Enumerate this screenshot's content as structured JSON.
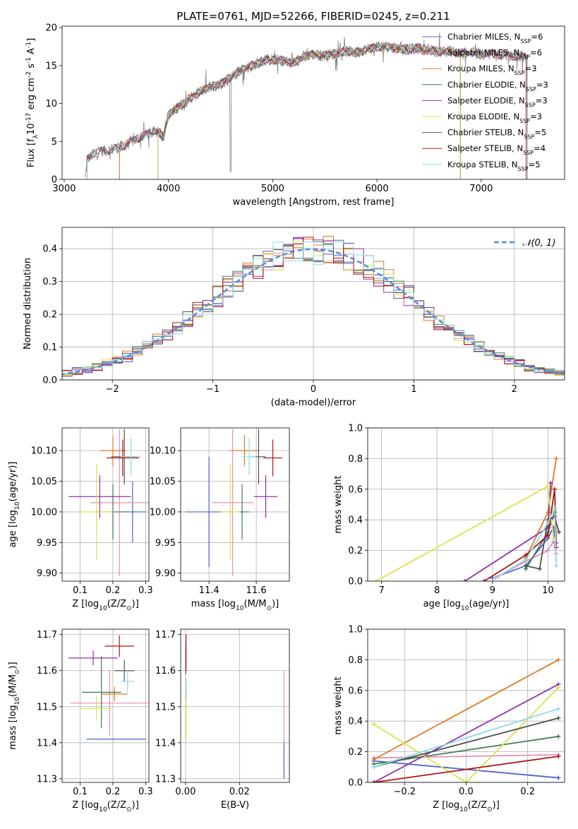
{
  "colors": {
    "Chabrier MILES": "#4f62d0",
    "Salpeter MILES": "#e58fb8",
    "Kroupa MILES": "#dd7a22",
    "Chabrier ELODIE": "#3f7a55",
    "Salpeter ELODIE": "#8f32ad",
    "Kroupa ELODIE": "#d9e24e",
    "Chabrier STELIB": "#505050",
    "Salpeter STELIB": "#b01616",
    "Kroupa STELIB": "#8bdbe6",
    "normal": "#5a8ed6"
  },
  "chart_data": [
    {
      "id": "spectrum",
      "type": "line",
      "title": "PLATE=0761, MJD=52266, FIBERID=0245, z=0.211",
      "xlabel": "wavelength [Angstrom, rest frame]",
      "ylabel": "Flux [f$_\\lambda$10$^{-17}$ erg cm$^{-2}$ s$^{-1}$ A$^{-1}$]",
      "xlim": [
        2980,
        7800
      ],
      "ylim": [
        0,
        20.2
      ],
      "xticks": [
        3000,
        4000,
        5000,
        6000,
        7000
      ],
      "yticks": [
        0,
        5,
        10,
        15,
        20
      ],
      "legend_position": "right",
      "legend": [
        {
          "series": "Chabrier MILES",
          "label": "Chabrier MILES, N$_{SSP}$=6"
        },
        {
          "series": "Salpeter MILES",
          "label": "Salpeter MILES, N$_{SSP}$=6"
        },
        {
          "series": "Kroupa MILES",
          "label": "Kroupa MILES, N$_{SSP}$=3"
        },
        {
          "series": "Chabrier ELODIE",
          "label": "Chabrier ELODIE, N$_{SSP}$=3"
        },
        {
          "series": "Salpeter ELODIE",
          "label": "Salpeter ELODIE, N$_{SSP}$=3"
        },
        {
          "series": "Kroupa ELODIE",
          "label": "Kroupa ELODIE, N$_{SSP}$=3"
        },
        {
          "series": "Chabrier STELIB",
          "label": "Chabrier STELIB, N$_{SSP}$=5"
        },
        {
          "series": "Salpeter STELIB",
          "label": "Salpeter STELIB, N$_{SSP}$=4"
        },
        {
          "series": "Kroupa STELIB",
          "label": "Kroupa STELIB, N$_{SSP}$=5"
        }
      ],
      "continuum": [
        [
          3200,
          0
        ],
        [
          3220,
          2.6
        ],
        [
          3300,
          3.6
        ],
        [
          3400,
          3.8
        ],
        [
          3500,
          4.1
        ],
        [
          3600,
          4.6
        ],
        [
          3700,
          5.4
        ],
        [
          3800,
          6.0
        ],
        [
          3900,
          6.4
        ],
        [
          3950,
          5.6
        ],
        [
          4000,
          8.5
        ],
        [
          4100,
          9.6
        ],
        [
          4200,
          10.6
        ],
        [
          4300,
          11.5
        ],
        [
          4400,
          12.2
        ],
        [
          4500,
          12.5
        ],
        [
          4600,
          13.5
        ],
        [
          4700,
          14.5
        ],
        [
          4800,
          15.0
        ],
        [
          4900,
          15.6
        ],
        [
          5000,
          15.8
        ],
        [
          5100,
          15.6
        ],
        [
          5200,
          15.4
        ],
        [
          5300,
          16.2
        ],
        [
          5400,
          16.5
        ],
        [
          5500,
          16.3
        ],
        [
          5600,
          16.6
        ],
        [
          5700,
          16.9
        ],
        [
          5800,
          16.7
        ],
        [
          5900,
          17.2
        ],
        [
          6000,
          17.4
        ],
        [
          6100,
          17.5
        ],
        [
          6200,
          17.3
        ],
        [
          6300,
          17.1
        ],
        [
          6400,
          17.3
        ],
        [
          6500,
          17.0
        ],
        [
          6600,
          16.8
        ],
        [
          6700,
          16.9
        ],
        [
          6800,
          16.6
        ],
        [
          6900,
          16.8
        ],
        [
          7000,
          16.5
        ],
        [
          7100,
          16.6
        ],
        [
          7200,
          16.4
        ],
        [
          7300,
          16.3
        ],
        [
          7400,
          16.2
        ],
        [
          7440,
          16.0
        ]
      ],
      "model_ranges": {
        "Chabrier MILES": [
          3530,
          7430
        ],
        "Salpeter MILES": [
          3530,
          7430
        ],
        "Kroupa MILES": [
          3530,
          7430
        ],
        "Chabrier ELODIE": [
          3900,
          6800
        ],
        "Salpeter ELODIE": [
          3900,
          6800
        ],
        "Kroupa ELODIE": [
          3900,
          6800
        ],
        "Chabrier STELIB": [
          3220,
          7440
        ],
        "Salpeter STELIB": [
          3220,
          7440
        ],
        "Kroupa STELIB": [
          3220,
          7440
        ]
      }
    },
    {
      "id": "residuals",
      "type": "bar",
      "xlabel": "(data-model)/error",
      "ylabel": "Normed distribution",
      "xlim": [
        -2.5,
        2.5
      ],
      "ylim": [
        0,
        0.465
      ],
      "xticks": [
        -2,
        -1,
        0,
        1,
        2
      ],
      "yticks": [
        0.0,
        0.1,
        0.2,
        0.3,
        0.4
      ],
      "grid": true,
      "reference_curve": {
        "label": "$\\mathcal{N}(0,1)$",
        "mean": 0,
        "sigma": 1
      },
      "bin_width": 0.1,
      "legend_position": "top-right"
    },
    {
      "id": "age-vs-Z",
      "type": "scatter",
      "xlabel": "Z [log$_{10}$($Z/Z_\\odot$)]",
      "ylabel": "age  [log$_{10}$($age/yr$)]",
      "xlim": [
        0.045,
        0.31
      ],
      "ylim": [
        9.887,
        10.137
      ],
      "xticks": [
        0.1,
        0.2,
        0.3
      ],
      "yticks": [
        9.9,
        9.95,
        10.0,
        10.05,
        10.1
      ],
      "grid": true,
      "points": [
        {
          "series": "Chabrier MILES",
          "x": 0.26,
          "y": 10.0,
          "xerr": 0.04,
          "yerr": 0.05
        },
        {
          "series": "Salpeter MILES",
          "x": 0.22,
          "y": 10.015,
          "xerr": 0.09,
          "yerr": 0.12
        },
        {
          "series": "Kroupa MILES",
          "x": 0.2,
          "y": 10.1,
          "xerr": 0.04,
          "yerr": 0.025
        },
        {
          "series": "Chabrier ELODIE",
          "x": 0.2,
          "y": 10.0,
          "xerr": 0.05,
          "yerr": 0.045
        },
        {
          "series": "Salpeter ELODIE",
          "x": 0.16,
          "y": 10.025,
          "xerr": 0.095,
          "yerr": 0.035
        },
        {
          "series": "Kroupa ELODIE",
          "x": 0.15,
          "y": 10.0,
          "xerr": 0.05,
          "yerr": 0.078
        },
        {
          "series": "Chabrier STELIB",
          "x": 0.235,
          "y": 10.09,
          "xerr": 0.04,
          "yerr": 0.045
        },
        {
          "series": "Salpeter STELIB",
          "x": 0.23,
          "y": 10.088,
          "xerr": 0.05,
          "yerr": 0.03
        },
        {
          "series": "Kroupa STELIB",
          "x": 0.255,
          "y": 10.09,
          "xerr": 0.03,
          "yerr": 0.03
        }
      ]
    },
    {
      "id": "age-vs-mass",
      "type": "scatter",
      "xlabel": "mass [log$_{10}$($M/M_\\odot$)]",
      "xlim": [
        11.28,
        11.74
      ],
      "ylim": [
        9.887,
        10.137
      ],
      "xticks": [
        11.4,
        11.6
      ],
      "yticks": [
        9.9,
        9.95,
        10.0,
        10.05,
        10.1
      ],
      "grid": true,
      "points": [
        {
          "series": "Chabrier MILES",
          "x": 11.4,
          "y": 10.0,
          "xerr": 0.1,
          "yerr": 0.09
        },
        {
          "series": "Salpeter MILES",
          "x": 11.5,
          "y": 10.015,
          "xerr": 0.09,
          "yerr": 0.12
        },
        {
          "series": "Kroupa MILES",
          "x": 11.55,
          "y": 10.1,
          "xerr": 0.06,
          "yerr": 0.025
        },
        {
          "series": "Chabrier ELODIE",
          "x": 11.54,
          "y": 10.0,
          "xerr": 0.03,
          "yerr": 0.045
        },
        {
          "series": "Salpeter ELODIE",
          "x": 11.64,
          "y": 10.025,
          "xerr": 0.05,
          "yerr": 0.035
        },
        {
          "series": "Kroupa ELODIE",
          "x": 11.49,
          "y": 10.0,
          "xerr": 0.04,
          "yerr": 0.078
        },
        {
          "series": "Chabrier STELIB",
          "x": 11.61,
          "y": 10.09,
          "xerr": 0.03,
          "yerr": 0.045
        },
        {
          "series": "Salpeter STELIB",
          "x": 11.67,
          "y": 10.088,
          "xerr": 0.04,
          "yerr": 0.03
        },
        {
          "series": "Kroupa STELIB",
          "x": 11.57,
          "y": 10.09,
          "xerr": 0.03,
          "yerr": 0.03
        }
      ]
    },
    {
      "id": "weight-vs-age",
      "type": "line",
      "xlabel": "age  [log$_{10}$($age/yr$)]",
      "ylabel": "mass weight",
      "xlim": [
        6.75,
        10.3
      ],
      "ylim": [
        0,
        1.0
      ],
      "xticks": [
        7,
        8,
        9,
        10
      ],
      "yticks": [
        0.0,
        0.2,
        0.4,
        0.6,
        0.8,
        1.0
      ],
      "grid": true,
      "series": [
        {
          "series": "Chabrier MILES",
          "points": [
            [
              9.0,
              0.02
            ],
            [
              9.6,
              0.1
            ],
            [
              10.0,
              0.28
            ],
            [
              10.1,
              0.35
            ],
            [
              10.12,
              0.3
            ],
            [
              10.15,
              0.25
            ]
          ]
        },
        {
          "series": "Salpeter MILES",
          "points": [
            [
              9.1,
              0.03
            ],
            [
              9.6,
              0.13
            ],
            [
              10.0,
              0.2
            ],
            [
              10.1,
              0.26
            ],
            [
              10.15,
              0.18
            ]
          ]
        },
        {
          "series": "Kroupa MILES",
          "points": [
            [
              9.6,
              0.15
            ],
            [
              10.0,
              0.45
            ],
            [
              10.15,
              0.8
            ]
          ]
        },
        {
          "series": "Chabrier ELODIE",
          "points": [
            [
              9.6,
              0.08
            ],
            [
              10.0,
              0.32
            ],
            [
              10.12,
              0.45
            ]
          ]
        },
        {
          "series": "Salpeter ELODIE",
          "points": [
            [
              8.5,
              0.0
            ],
            [
              10.0,
              0.35
            ],
            [
              10.05,
              0.64
            ]
          ]
        },
        {
          "series": "Kroupa ELODIE",
          "points": [
            [
              6.9,
              0.0
            ],
            [
              10.0,
              0.62
            ],
            [
              10.1,
              0.28
            ]
          ]
        },
        {
          "series": "Chabrier STELIB",
          "points": [
            [
              9.6,
              0.1
            ],
            [
              9.85,
              0.08
            ],
            [
              10.0,
              0.4
            ],
            [
              10.12,
              0.42
            ],
            [
              10.2,
              0.32
            ]
          ]
        },
        {
          "series": "Salpeter STELIB",
          "points": [
            [
              8.85,
              0.0
            ],
            [
              9.6,
              0.17
            ],
            [
              10.0,
              0.3
            ],
            [
              10.12,
              0.6
            ],
            [
              10.15,
              0.22
            ]
          ]
        },
        {
          "series": "Kroupa STELIB",
          "points": [
            [
              9.05,
              0.02
            ],
            [
              9.6,
              0.14
            ],
            [
              10.0,
              0.38
            ],
            [
              10.12,
              0.48
            ],
            [
              10.15,
              0.1
            ]
          ]
        }
      ]
    },
    {
      "id": "mass-vs-Z",
      "type": "scatter",
      "xlabel": "Z [log$_{10}$($Z/Z_\\odot$)]",
      "ylabel": "mass [log$_{10}$($M/M_\\odot$)]",
      "xlim": [
        0.045,
        0.31
      ],
      "ylim": [
        11.29,
        11.715
      ],
      "xticks": [
        0.1,
        0.2,
        0.3
      ],
      "yticks": [
        11.3,
        11.4,
        11.5,
        11.6,
        11.7
      ],
      "grid": true,
      "points": [
        {
          "series": "Chabrier MILES",
          "x": 0.21,
          "y": 11.41,
          "xerr": 0.09,
          "yerr": 0.0
        },
        {
          "series": "Salpeter MILES",
          "x": 0.19,
          "y": 11.51,
          "xerr": 0.12,
          "yerr": 0.09
        },
        {
          "series": "Kroupa MILES",
          "x": 0.205,
          "y": 11.535,
          "xerr": 0.04,
          "yerr": 0.02
        },
        {
          "series": "Chabrier ELODIE",
          "x": 0.165,
          "y": 11.54,
          "xerr": 0.06,
          "yerr": 0.1
        },
        {
          "series": "Salpeter ELODIE",
          "x": 0.14,
          "y": 11.635,
          "xerr": 0.075,
          "yerr": 0.02
        },
        {
          "series": "Kroupa ELODIE",
          "x": 0.15,
          "y": 11.495,
          "xerr": 0.05,
          "yerr": 0.035
        },
        {
          "series": "Chabrier STELIB",
          "x": 0.235,
          "y": 11.6,
          "xerr": 0.03,
          "yerr": 0.03
        },
        {
          "series": "Salpeter STELIB",
          "x": 0.22,
          "y": 11.668,
          "xerr": 0.045,
          "yerr": 0.03
        },
        {
          "series": "Kroupa STELIB",
          "x": 0.245,
          "y": 11.57,
          "xerr": 0.02,
          "yerr": 0.03
        }
      ]
    },
    {
      "id": "mass-vs-ebv",
      "type": "scatter",
      "xlabel": "E(B-V)",
      "xlim": [
        -0.0018,
        0.0385
      ],
      "ylim": [
        11.29,
        11.715
      ],
      "xticks": [
        0.0,
        0.02
      ],
      "xtick_labels": [
        "0.00",
        "0.02"
      ],
      "yticks": [
        11.3,
        11.4,
        11.5,
        11.6,
        11.7
      ],
      "grid": true,
      "points": [
        {
          "series": "Chabrier MILES",
          "x": 0.0365,
          "y": 11.35,
          "xerr": 0,
          "yerr": 0.05
        },
        {
          "series": "Salpeter MILES",
          "x": 0.0365,
          "y": 11.5,
          "xerr": 0,
          "yerr": 0.1
        },
        {
          "series": "Kroupa ELODIE",
          "x": 0.0002,
          "y": 11.48,
          "xerr": 0,
          "yerr": 0.07
        },
        {
          "series": "Salpeter ELODIE",
          "x": 0.0001,
          "y": 11.63,
          "xerr": 0,
          "yerr": 0.04
        },
        {
          "series": "Salpeter STELIB",
          "x": 0.0002,
          "y": 11.65,
          "xerr": 0,
          "yerr": 0.05
        },
        {
          "series": "Kroupa STELIB",
          "x": 0.0003,
          "y": 11.55,
          "xerr": 0,
          "yerr": 0.03
        }
      ]
    },
    {
      "id": "weight-vs-Z",
      "type": "line",
      "xlabel": "Z [log$_{10}$($Z/Z_\\odot$)]",
      "ylabel": "mass weight",
      "xlim": [
        -0.32,
        0.32
      ],
      "ylim": [
        0,
        1.0
      ],
      "xticks": [
        -0.2,
        0.0,
        0.2
      ],
      "xtick_labels": [
        "−0.2",
        "0.0",
        "0.2"
      ],
      "yticks": [
        0.0,
        0.2,
        0.4,
        0.6,
        0.8,
        1.0
      ],
      "grid": true,
      "series": [
        {
          "series": "Chabrier MILES",
          "points": [
            [
              -0.3,
              0.14
            ],
            [
              0.3,
              0.03
            ]
          ]
        },
        {
          "series": "Salpeter MILES",
          "points": [
            [
              -0.3,
              0.16
            ],
            [
              0.3,
              0.18
            ]
          ]
        },
        {
          "series": "Kroupa MILES",
          "points": [
            [
              -0.3,
              0.15
            ],
            [
              0.3,
              0.8
            ]
          ]
        },
        {
          "series": "Chabrier ELODIE",
          "points": [
            [
              -0.3,
              0.12
            ],
            [
              0.3,
              0.3
            ]
          ]
        },
        {
          "series": "Salpeter ELODIE",
          "points": [
            [
              -0.3,
              0.0
            ],
            [
              0.3,
              0.64
            ]
          ]
        },
        {
          "series": "Kroupa ELODIE",
          "points": [
            [
              -0.3,
              0.38
            ],
            [
              0.0,
              0.0
            ],
            [
              0.3,
              0.62
            ]
          ]
        },
        {
          "series": "Chabrier STELIB",
          "points": [
            [
              -0.3,
              0.1
            ],
            [
              0.3,
              0.42
            ]
          ]
        },
        {
          "series": "Salpeter STELIB",
          "points": [
            [
              -0.3,
              0.0
            ],
            [
              0.3,
              0.17
            ]
          ]
        },
        {
          "series": "Kroupa STELIB",
          "points": [
            [
              -0.3,
              0.1
            ],
            [
              0.3,
              0.48
            ]
          ]
        }
      ]
    }
  ]
}
